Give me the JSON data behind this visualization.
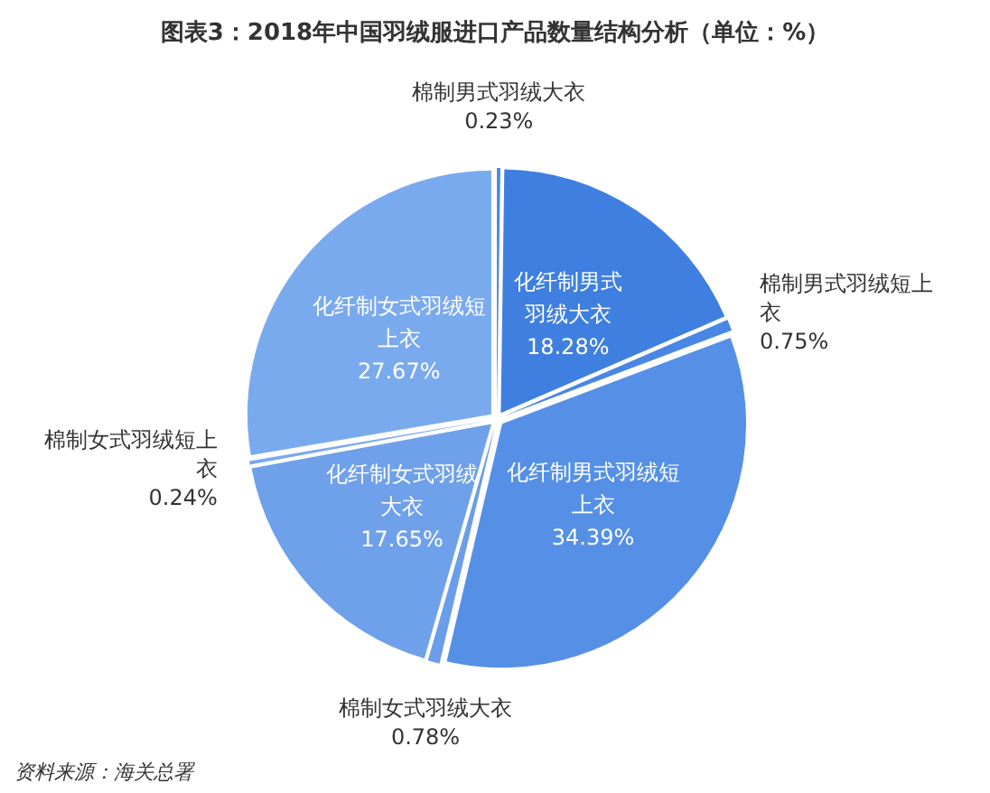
{
  "chart_data": {
    "type": "pie",
    "title": "图表3：2018年中国羽绒服进口产品数量结构分析（单位：%）",
    "categories": [
      "棉制男式羽绒大衣",
      "化纤制男式羽绒大衣",
      "棉制男式羽绒短上衣",
      "化纤制男式羽绒短上衣",
      "棉制女式羽绒大衣",
      "化纤制女式羽绒大衣",
      "棉制女式羽绒短上衣",
      "化纤制女式羽绒短上衣"
    ],
    "values": [
      0.23,
      18.28,
      0.75,
      34.39,
      0.78,
      17.65,
      0.24,
      27.67
    ],
    "value_labels": [
      "0.23%",
      "18.28%",
      "0.75%",
      "34.39%",
      "0.78%",
      "17.65%",
      "0.24%",
      "27.67%"
    ],
    "colors": [
      "#4a86e4",
      "#3f7fe0",
      "#4a86e4",
      "#5590e6",
      "#6a9dea",
      "#6fa0ea",
      "#7aaaee",
      "#7aaaee"
    ],
    "annotations": [
      "资料来源：海关总署"
    ]
  }
}
